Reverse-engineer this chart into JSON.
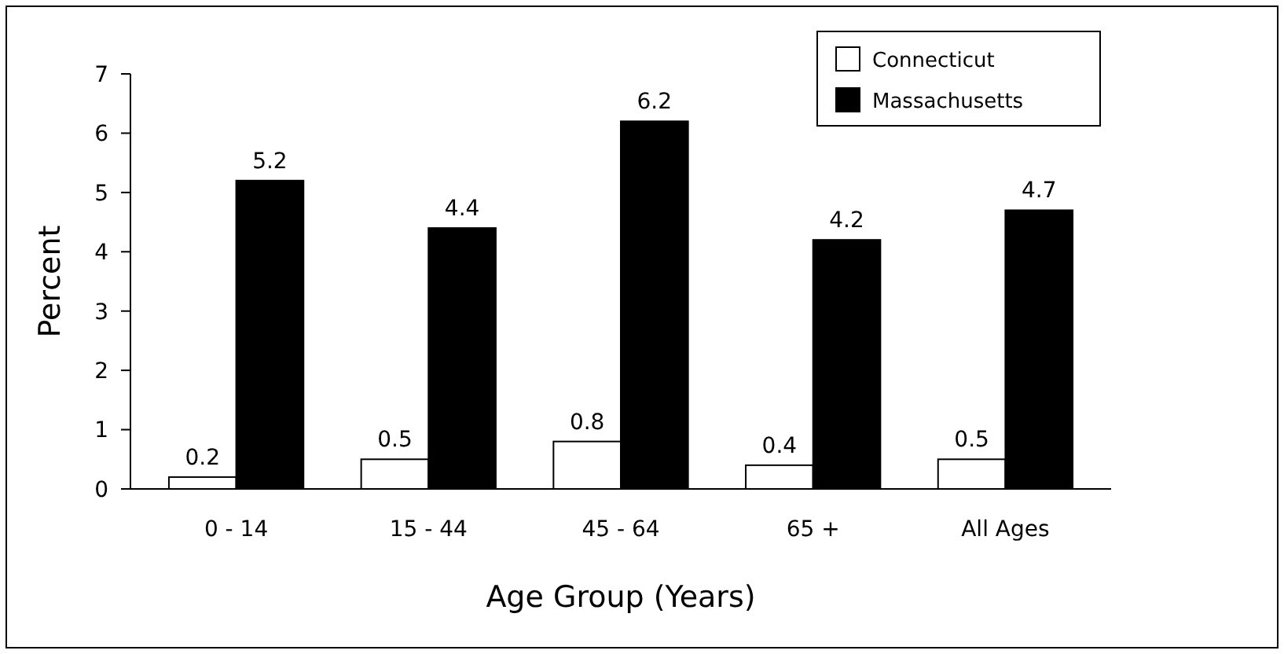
{
  "chart_data": {
    "type": "bar",
    "xlabel": "Age Group (Years)",
    "ylabel": "Percent",
    "categories": [
      "0 - 14",
      "15 - 44",
      "45 - 64",
      "65 +",
      "All Ages"
    ],
    "series": [
      {
        "name": "Connecticut",
        "color": "#ffffff",
        "values": [
          0.2,
          0.5,
          0.8,
          0.4,
          0.5
        ]
      },
      {
        "name": "Massachusetts",
        "color": "#000000",
        "values": [
          5.2,
          4.4,
          6.2,
          4.2,
          4.7
        ]
      }
    ],
    "ylim": [
      0,
      7
    ],
    "yticks": [
      0,
      1,
      2,
      3,
      4,
      5,
      6,
      7
    ],
    "data_labels": true,
    "legend": "top right",
    "grid": false
  }
}
